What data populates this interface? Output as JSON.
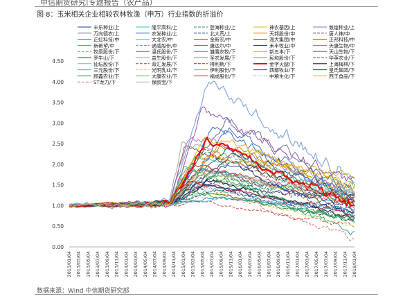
{
  "header": {
    "fragment": "中信期货研究|专题报告（农产品）"
  },
  "figure": {
    "title": "图 8：玉米相关企业相较农林牧渔（申万）行业指数的折溢价",
    "source": "数据来源：Wind  中信期货研究部"
  },
  "chart_data": {
    "type": "line",
    "title": "",
    "xlabel": "",
    "ylabel": "",
    "ylim": [
      0,
      4.5
    ],
    "yticks": [
      "0.00",
      "0.50",
      "1.00",
      "1.50",
      "2.00",
      "2.50",
      "3.00",
      "3.50",
      "4.00",
      "4.50"
    ],
    "xticks": [
      "2013/01/04",
      "2013/03/04",
      "2013/05/04",
      "2013/07/04",
      "2013/09/04",
      "2013/11/04",
      "2014/01/04",
      "2014/03/04",
      "2014/05/04",
      "2014/07/04",
      "2014/09/04",
      "2014/11/04",
      "2015/01/04",
      "2015/03/04",
      "2015/05/04",
      "2015/07/04",
      "2015/09/04",
      "2015/11/04",
      "2016/01/04",
      "2016/03/04",
      "2016/05/04",
      "2016/07/04",
      "2016/09/04",
      "2016/11/04",
      "2017/01/04",
      "2017/03/04",
      "2017/05/04",
      "2017/07/04",
      "2017/09/04",
      "2017/11/04",
      "2018/01/04"
    ],
    "grid": false,
    "legend_position": "top",
    "series": [
      {
        "name": "丰乐种业/上",
        "color": "#1f3a93",
        "style": "solid",
        "width": 1,
        "start": 1.0,
        "peak": 1.9,
        "end": 1.1,
        "vol": 0.05
      },
      {
        "name": "隆平高科/上",
        "color": "#1ec8c8",
        "style": "solid",
        "width": 1,
        "start": 1.0,
        "peak": 2.2,
        "end": 1.3,
        "vol": 0.06
      },
      {
        "name": "登海种业/上",
        "color": "#2e8b57",
        "style": "dashed",
        "width": 1,
        "start": 1.0,
        "peak": 2.3,
        "end": 1.5,
        "vol": 0.06
      },
      {
        "name": "神农基因/上",
        "color": "#e6b800",
        "style": "solid",
        "width": 1,
        "start": 1.0,
        "peak": 2.6,
        "end": 1.4,
        "vol": 0.07
      },
      {
        "name": "敦煌种业/上",
        "color": "#7f9fd6",
        "style": "solid",
        "width": 1.2,
        "start": 1.0,
        "peak": 4.0,
        "end": 1.6,
        "vol": 0.11
      },
      {
        "name": "万向德农/上",
        "color": "#6b6b6b",
        "style": "solid",
        "width": 1,
        "start": 1.0,
        "peak": 1.8,
        "end": 1.0,
        "vol": 0.05
      },
      {
        "name": "农发种业/上",
        "color": "#1565c0",
        "style": "solid",
        "width": 1,
        "start": 1.0,
        "peak": 2.9,
        "end": 1.1,
        "vol": 0.08
      },
      {
        "name": "北大荒/上",
        "color": "#1d2f5a",
        "style": "dashed",
        "width": 1,
        "start": 1.0,
        "peak": 1.4,
        "end": 0.6,
        "vol": 0.03
      },
      {
        "name": "天邦股份/中",
        "color": "#e07b00",
        "style": "solid",
        "width": 1,
        "start": 1.0,
        "peak": 2.5,
        "end": 1.3,
        "vol": 0.07
      },
      {
        "name": "唐人神/中",
        "color": "#444444",
        "style": "dashed",
        "width": 1,
        "start": 1.0,
        "peak": 1.7,
        "end": 0.9,
        "vol": 0.05
      },
      {
        "name": "正虹科技/中",
        "color": "#3a5fcd",
        "style": "solid",
        "width": 1,
        "start": 1.0,
        "peak": 2.8,
        "end": 1.2,
        "vol": 0.08
      },
      {
        "name": "大北农/中",
        "color": "#4da6ff",
        "style": "solid",
        "width": 1,
        "start": 1.0,
        "peak": 1.6,
        "end": 0.8,
        "vol": 0.04
      },
      {
        "name": "金新农/中",
        "color": "#7a4b1a",
        "style": "solid",
        "width": 1,
        "start": 1.0,
        "peak": 2.4,
        "end": 1.1,
        "vol": 0.06
      },
      {
        "name": "海大集团/中",
        "color": "#2f3f7f",
        "style": "solid",
        "width": 1,
        "start": 1.0,
        "peak": 1.5,
        "end": 1.2,
        "vol": 0.04
      },
      {
        "name": "正邦科技/中",
        "color": "#c0392b",
        "style": "solid",
        "width": 1,
        "start": 1.0,
        "peak": 2.0,
        "end": 1.2,
        "vol": 0.05
      },
      {
        "name": "新希望/中",
        "color": "#27ae60",
        "style": "solid",
        "width": 1,
        "start": 1.0,
        "peak": 1.3,
        "end": 0.7,
        "vol": 0.03
      },
      {
        "name": "通威股份/中",
        "color": "#1abc9c",
        "style": "dashed",
        "width": 1,
        "start": 1.0,
        "peak": 1.6,
        "end": 1.3,
        "vol": 0.04
      },
      {
        "name": "康达尔/中",
        "color": "#8e44ad",
        "style": "solid",
        "width": 1,
        "start": 1.0,
        "peak": 3.3,
        "end": 1.5,
        "vol": 0.09
      },
      {
        "name": "禾丰牧业/中",
        "color": "#1a237e",
        "style": "solid",
        "width": 1,
        "start": 1.0,
        "peak": 1.5,
        "end": 0.8,
        "vol": 0.04
      },
      {
        "name": "天康生物/中",
        "color": "#e74c3c",
        "style": "solid",
        "width": 1,
        "start": 1.0,
        "peak": 1.9,
        "end": 1.0,
        "vol": 0.05
      },
      {
        "name": "牧原股份/下",
        "color": "#e67e22",
        "style": "dashed",
        "width": 1,
        "start": 1.0,
        "peak": 2.3,
        "end": 1.1,
        "vol": 0.06
      },
      {
        "name": "温氏股份/下",
        "color": "#2980b9",
        "style": "solid",
        "width": 1,
        "start": 1.0,
        "peak": 1.2,
        "end": 0.9,
        "vol": 0.03
      },
      {
        "name": "雏鹰农牧/下",
        "color": "#16a085",
        "style": "solid",
        "width": 1,
        "start": 1.0,
        "peak": 1.8,
        "end": 0.3,
        "vol": 0.05
      },
      {
        "name": "新五丰/下",
        "color": "#f39c12",
        "style": "solid",
        "width": 1,
        "start": 1.0,
        "peak": 2.6,
        "end": 1.4,
        "vol": 0.07
      },
      {
        "name": "天山生物/下",
        "color": "#5b6b7a",
        "style": "solid",
        "width": 1,
        "start": 1.0,
        "peak": 3.1,
        "end": 1.3,
        "vol": 0.09
      },
      {
        "name": "罗牛山/下",
        "color": "#2c3e50",
        "style": "solid",
        "width": 1,
        "start": 1.0,
        "peak": 2.2,
        "end": 1.0,
        "vol": 0.06
      },
      {
        "name": "益生股份/下",
        "color": "#95a5a6",
        "style": "solid",
        "width": 1,
        "start": 1.0,
        "peak": 2.5,
        "end": 1.4,
        "vol": 0.07
      },
      {
        "name": "圣农发展/下",
        "color": "#7f8c8d",
        "style": "solid",
        "width": 1,
        "start": 1.0,
        "peak": 1.9,
        "end": 1.2,
        "vol": 0.05
      },
      {
        "name": "民和股份/下",
        "color": "#a569bd",
        "style": "solid",
        "width": 1,
        "start": 1.0,
        "peak": 2.7,
        "end": 1.3,
        "vol": 0.07
      },
      {
        "name": "华英农业/下",
        "color": "#555555",
        "style": "dashed",
        "width": 1,
        "start": 1.0,
        "peak": 1.7,
        "end": 0.9,
        "vol": 0.05
      },
      {
        "name": "仙坛股份/下",
        "color": "#8bc34a",
        "style": "solid",
        "width": 1,
        "start": 1.0,
        "peak": 1.8,
        "end": 1.1,
        "vol": 0.05
      },
      {
        "name": "双汇发展/下",
        "color": "#c0392b",
        "style": "dashed",
        "width": 1,
        "start": 1.0,
        "peak": 1.1,
        "end": 0.5,
        "vol": 0.03
      },
      {
        "name": "得利斯/下",
        "color": "#922b21",
        "style": "dashed",
        "width": 1,
        "start": 1.0,
        "peak": 2.3,
        "end": 1.0,
        "vol": 0.06
      },
      {
        "name": "金字火腿/下",
        "color": "#e60000",
        "style": "solid",
        "width": 2.2,
        "start": 1.0,
        "peak": 2.6,
        "end": 1.0,
        "vol": 0.07
      },
      {
        "name": "上海梅林/下",
        "color": "#212121",
        "style": "solid",
        "width": 1.2,
        "start": 1.0,
        "peak": 1.6,
        "end": 0.7,
        "vol": 0.04
      },
      {
        "name": "三元股份/下",
        "color": "#45b39d",
        "style": "solid",
        "width": 1,
        "start": 1.0,
        "peak": 1.4,
        "end": 0.6,
        "vol": 0.04
      },
      {
        "name": "光明乳业/下",
        "color": "#cddc39",
        "style": "dashed",
        "width": 1,
        "start": 1.0,
        "peak": 1.3,
        "end": 0.5,
        "vol": 0.03
      },
      {
        "name": "伊利股份/下",
        "color": "#5dade2",
        "style": "solid",
        "width": 1,
        "start": 1.0,
        "peak": 1.2,
        "end": 0.9,
        "vol": 0.03
      },
      {
        "name": "西部牧业/下",
        "color": "#1b4f72",
        "style": "solid",
        "width": 1,
        "start": 1.0,
        "peak": 2.4,
        "end": 1.2,
        "vol": 0.06
      },
      {
        "name": "皇氏集团/下",
        "color": "#0b3d91",
        "style": "solid",
        "width": 1,
        "start": 1.0,
        "peak": 2.0,
        "end": 0.8,
        "vol": 0.05
      },
      {
        "name": "顾鑫农业/下",
        "color": "#2e7d32",
        "style": "solid",
        "width": 1,
        "start": 1.0,
        "peak": 1.4,
        "end": 0.7,
        "vol": 0.04
      },
      {
        "name": "大康农业/下",
        "color": "#4caf50",
        "style": "solid",
        "width": 1,
        "start": 1.0,
        "peak": 1.9,
        "end": 0.6,
        "vol": 0.05
      },
      {
        "name": "福成股份/下",
        "color": "#b71c1c",
        "style": "solid",
        "width": 1,
        "start": 1.0,
        "peak": 1.6,
        "end": 0.8,
        "vol": 0.04
      },
      {
        "name": "中粮生化/下",
        "color": "#7b1fa2",
        "style": "dotted",
        "width": 1,
        "start": 1.0,
        "peak": 1.5,
        "end": 0.7,
        "vol": 0.04
      },
      {
        "name": "西王食品/下",
        "color": "#d4ac0d",
        "style": "solid",
        "width": 1,
        "start": 1.0,
        "peak": 2.2,
        "end": 1.8,
        "vol": 0.06
      },
      {
        "name": "ST龙力/下",
        "color": "#ec7063",
        "style": "dashed",
        "width": 1,
        "start": 1.0,
        "peak": 1.5,
        "end": 0.2,
        "vol": 0.04
      },
      {
        "name": "保龄宝/下",
        "color": "#aab7b8",
        "style": "solid",
        "width": 1,
        "start": 1.0,
        "peak": 1.8,
        "end": 1.3,
        "vol": 0.05
      }
    ]
  }
}
